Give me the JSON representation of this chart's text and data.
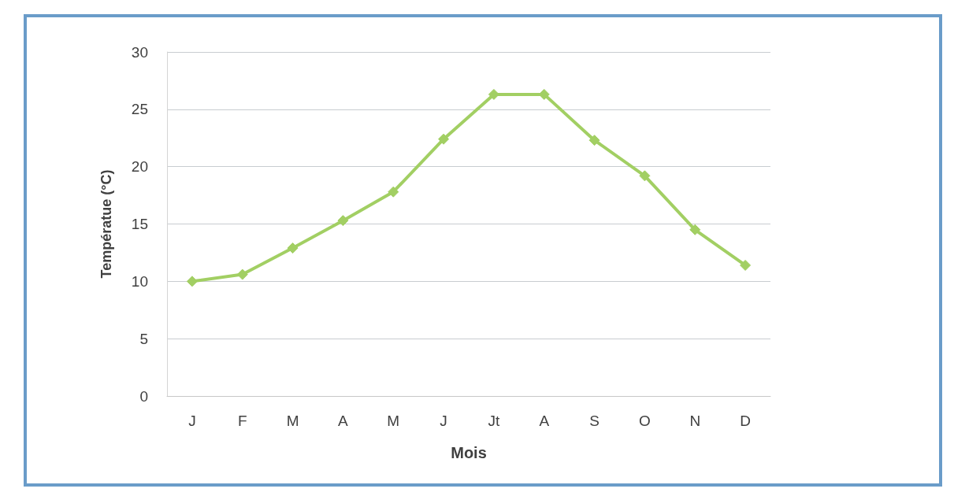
{
  "chart_data": {
    "type": "line",
    "xlabel": "Mois",
    "ylabel": "Températue (°C)",
    "categories": [
      "J",
      "F",
      "M",
      "A",
      "M",
      "J",
      "Jt",
      "A",
      "S",
      "O",
      "N",
      "D"
    ],
    "series": [
      {
        "color": "#a2cf63",
        "values": [
          10,
          10.6,
          12.9,
          15.3,
          17.8,
          22.4,
          26.3,
          26.3,
          22.3,
          19.2,
          14.5,
          11.4
        ]
      }
    ],
    "ylim": [
      0,
      30
    ],
    "yticks": [
      0,
      5,
      10,
      15,
      20,
      25,
      30
    ],
    "grid": "y",
    "marker": "diamond",
    "line_style": "solid"
  }
}
